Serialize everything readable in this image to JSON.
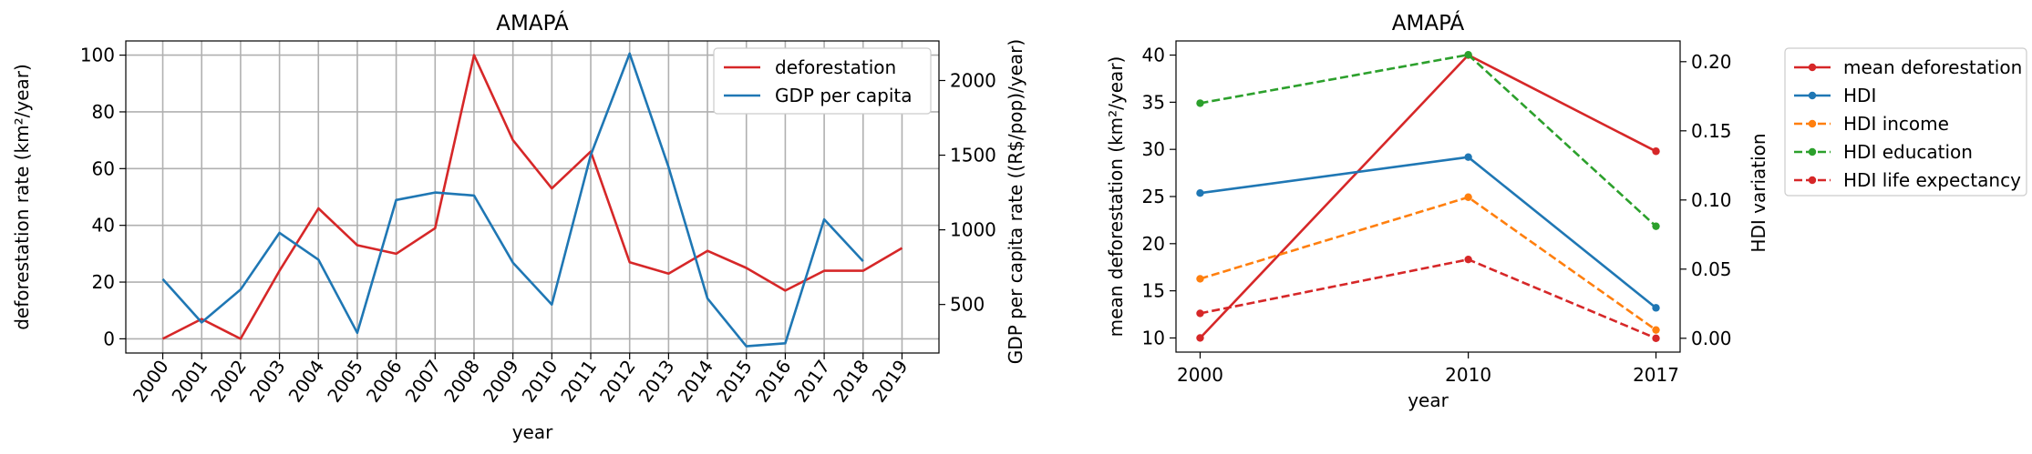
{
  "chart_data": [
    {
      "type": "line",
      "title": "AMAPÁ",
      "xlabel": "year",
      "ylabel": "deforestation rate (km²/year)",
      "ylabel_right": "GDP per capita rate ((R$/pop)/year)",
      "categories": [
        "2000",
        "2001",
        "2002",
        "2003",
        "2004",
        "2005",
        "2006",
        "2007",
        "2008",
        "2009",
        "2010",
        "2011",
        "2012",
        "2013",
        "2014",
        "2015",
        "2016",
        "2017",
        "2018",
        "2019"
      ],
      "ylim": [
        -5,
        105
      ],
      "yticks": [
        0,
        20,
        40,
        60,
        80,
        100
      ],
      "ylim_right": [
        175,
        2265
      ],
      "yticks_right": [
        500,
        1000,
        1500,
        2000
      ],
      "grid": true,
      "legend_position": "top-right",
      "series": [
        {
          "name": "deforestation",
          "axis": "left",
          "color": "#d62728",
          "values": [
            0,
            7,
            0,
            24,
            46,
            33,
            30,
            39,
            100,
            70,
            53,
            66,
            27,
            23,
            31,
            25,
            17,
            24,
            24,
            32
          ]
        },
        {
          "name": "GDP per capita",
          "axis": "right",
          "color": "#1f77b4",
          "values": [
            670,
            380,
            600,
            980,
            800,
            310,
            1200,
            1250,
            1230,
            780,
            500,
            1500,
            2180,
            1420,
            540,
            220,
            240,
            1070,
            790,
            null
          ]
        }
      ]
    },
    {
      "type": "line",
      "title": "AMAPÁ",
      "xlabel": "year",
      "ylabel": "mean deforestation (km²/year)",
      "ylabel_right": "HDI variation",
      "x": [
        2000,
        2010,
        2017
      ],
      "xticks": [
        "2000",
        "2010",
        "2017"
      ],
      "xlim": [
        1999.1,
        2017.9
      ],
      "ylim": [
        8.5,
        41.5
      ],
      "yticks": [
        10,
        15,
        20,
        25,
        30,
        35,
        40
      ],
      "ylim_right": [
        -0.01,
        0.215
      ],
      "yticks_right": [
        "0.00",
        "0.05",
        "0.10",
        "0.15",
        "0.20"
      ],
      "grid": false,
      "legend_position": "outside-right",
      "series": [
        {
          "name": "mean deforestation",
          "axis": "left",
          "color": "#d62728",
          "dash": false,
          "values": [
            10,
            40,
            29.8
          ]
        },
        {
          "name": "HDI",
          "axis": "right",
          "color": "#1f77b4",
          "dash": false,
          "values": [
            0.105,
            0.131,
            0.022
          ]
        },
        {
          "name": "HDI income",
          "axis": "right",
          "color": "#ff7f0e",
          "dash": true,
          "values": [
            0.043,
            0.102,
            0.006
          ]
        },
        {
          "name": "HDI education",
          "axis": "right",
          "color": "#2ca02c",
          "dash": true,
          "values": [
            0.17,
            0.205,
            0.081
          ]
        },
        {
          "name": "HDI life expectancy",
          "axis": "right",
          "color": "#d62728",
          "dash": true,
          "values": [
            0.018,
            0.057,
            0.0
          ]
        }
      ]
    }
  ]
}
